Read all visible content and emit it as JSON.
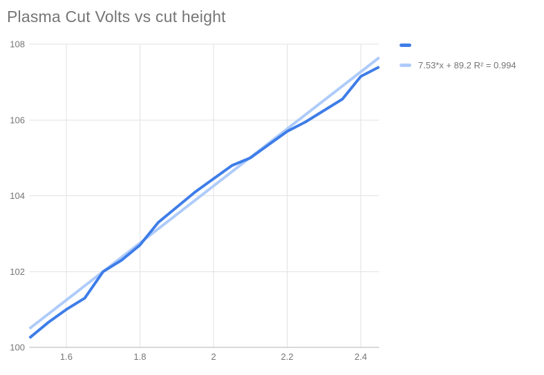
{
  "colors": {
    "series": "#3E7DE8",
    "trendline": "#AECBFA",
    "gridline": "#E2E2E2",
    "baseline": "#B3B3B3",
    "tick_text": "#757575",
    "title_text": "#757575",
    "background": "#FFFFFF"
  },
  "chart_data": {
    "type": "line",
    "title": "Plasma Cut Volts vs cut height",
    "xlabel": "",
    "ylabel": "",
    "x": [
      1.5,
      1.55,
      1.6,
      1.65,
      1.7,
      1.75,
      1.8,
      1.85,
      1.9,
      1.95,
      2.0,
      2.05,
      2.1,
      2.15,
      2.2,
      2.25,
      2.3,
      2.35,
      2.4,
      2.45
    ],
    "series": [
      {
        "name": "",
        "values": [
          100.25,
          100.65,
          101.0,
          101.3,
          102.0,
          102.3,
          102.7,
          103.3,
          103.7,
          104.1,
          104.45,
          104.8,
          105.0,
          105.35,
          105.7,
          105.95,
          106.25,
          106.55,
          107.15,
          107.4
        ]
      }
    ],
    "trendline": {
      "label": "7.53*x + 89.2 R² = 0.994",
      "equation": "7.53*x + 89.2",
      "slope": 7.53,
      "intercept": 89.2,
      "r2": 0.994
    },
    "xlim": [
      1.5,
      2.45
    ],
    "ylim": [
      100,
      108
    ],
    "x_tick_values": [
      1.6,
      1.8,
      2.0,
      2.2,
      2.4
    ],
    "x_tick_labels": [
      "1.6",
      "1.8",
      "2",
      "2.2",
      "2.4"
    ],
    "y_tick_values": [
      100,
      102,
      104,
      106,
      108
    ],
    "y_tick_labels": [
      "100",
      "102",
      "104",
      "106",
      "108"
    ],
    "grid": true,
    "legend_position": "top-right"
  }
}
